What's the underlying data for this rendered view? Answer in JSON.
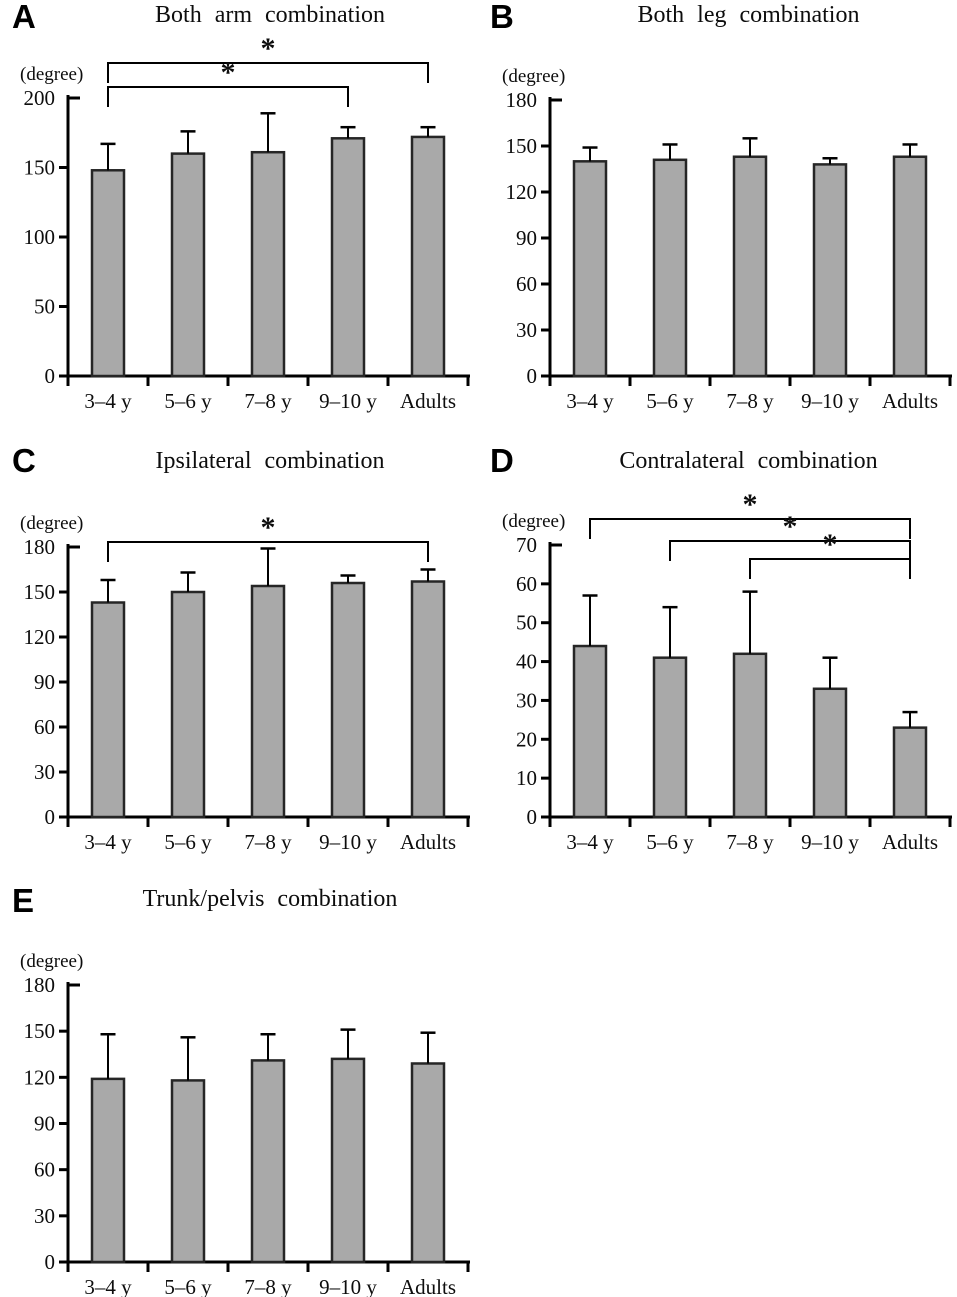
{
  "figure": {
    "background": "#ffffff",
    "bar_fill": "#a9a9a9",
    "bar_stroke": "#262626",
    "axis_color": "#000000",
    "text_color": "#0d0d0d",
    "significance_symbol": "*"
  },
  "chart_data": [
    {
      "type": "bar",
      "panel_label": "A",
      "title": "Both arm combination",
      "ylabel": "(degree)",
      "categories": [
        "3–4 y",
        "5–6 y",
        "7–8 y",
        "9–10 y",
        "Adults"
      ],
      "values": [
        148,
        160,
        161,
        171,
        172
      ],
      "errors_upper": [
        19,
        16,
        28,
        8,
        7
      ],
      "ylim": [
        0,
        200
      ],
      "ytick_step": 50,
      "ytick_labels": [
        "0",
        "50",
        "100",
        "150",
        "200"
      ],
      "grid": false,
      "legend": null,
      "significance_brackets": [
        {
          "from": "3–4 y",
          "to": "Adults",
          "symbol": "*"
        },
        {
          "from": "3–4 y",
          "to": "9–10 y",
          "symbol": "*"
        }
      ]
    },
    {
      "type": "bar",
      "panel_label": "B",
      "title": "Both leg combination",
      "ylabel": "(degree)",
      "categories": [
        "3–4 y",
        "5–6 y",
        "7–8 y",
        "9–10 y",
        "Adults"
      ],
      "values": [
        140,
        141,
        143,
        138,
        143
      ],
      "errors_upper": [
        9,
        10,
        12,
        4,
        8
      ],
      "ylim": [
        0,
        180
      ],
      "ytick_step": 30,
      "ytick_labels": [
        "0",
        "30",
        "60",
        "90",
        "120",
        "150",
        "180"
      ],
      "grid": false,
      "legend": null,
      "significance_brackets": []
    },
    {
      "type": "bar",
      "panel_label": "C",
      "title": "Ipsilateral combination",
      "ylabel": "(degree)",
      "categories": [
        "3–4 y",
        "5–6 y",
        "7–8 y",
        "9–10 y",
        "Adults"
      ],
      "values": [
        143,
        150,
        154,
        156,
        157
      ],
      "errors_upper": [
        15,
        13,
        25,
        5,
        8
      ],
      "ylim": [
        0,
        180
      ],
      "ytick_step": 30,
      "ytick_labels": [
        "0",
        "30",
        "60",
        "90",
        "120",
        "150",
        "180"
      ],
      "grid": false,
      "legend": null,
      "significance_brackets": [
        {
          "from": "3–4 y",
          "to": "Adults",
          "symbol": "*"
        }
      ]
    },
    {
      "type": "bar",
      "panel_label": "D",
      "title": "Contralateral combination",
      "ylabel": "(degree)",
      "categories": [
        "3–4 y",
        "5–6 y",
        "7–8 y",
        "9–10 y",
        "Adults"
      ],
      "values": [
        44,
        41,
        42,
        33,
        23
      ],
      "errors_upper": [
        13,
        13,
        16,
        8,
        4
      ],
      "ylim": [
        0,
        70
      ],
      "ytick_step": 10,
      "ytick_labels": [
        "0",
        "10",
        "20",
        "30",
        "40",
        "50",
        "60",
        "70"
      ],
      "grid": false,
      "legend": null,
      "significance_brackets": [
        {
          "from": "3–4 y",
          "to": "Adults",
          "symbol": "*"
        },
        {
          "from": "5–6 y",
          "to": "Adults",
          "symbol": "*"
        },
        {
          "from": "7–8 y",
          "to": "Adults",
          "symbol": "*"
        }
      ]
    },
    {
      "type": "bar",
      "panel_label": "E",
      "title": "Trunk/pelvis combination",
      "ylabel": "(degree)",
      "categories": [
        "3–4 y",
        "5–6 y",
        "7–8 y",
        "9–10 y",
        "Adults"
      ],
      "values": [
        119,
        118,
        131,
        132,
        129
      ],
      "errors_upper": [
        29,
        28,
        17,
        19,
        20
      ],
      "ylim": [
        0,
        180
      ],
      "ytick_step": 30,
      "ytick_labels": [
        "0",
        "30",
        "60",
        "90",
        "120",
        "150",
        "180"
      ],
      "grid": false,
      "legend": null,
      "significance_brackets": []
    }
  ]
}
